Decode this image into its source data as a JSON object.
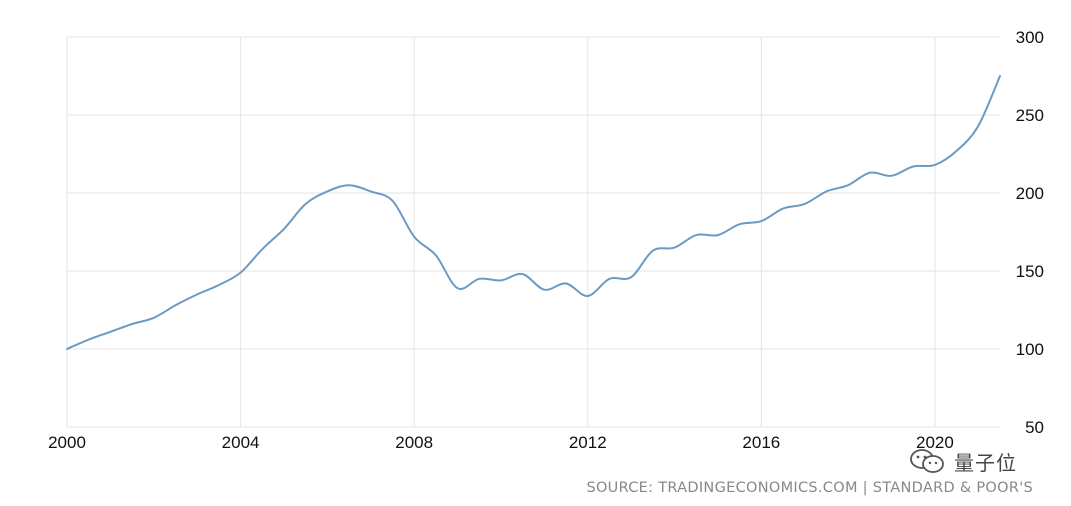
{
  "chart_data": {
    "type": "line",
    "title": "",
    "xlabel": "",
    "ylabel": "",
    "xlim": [
      2000,
      2021.5
    ],
    "ylim": [
      50,
      300
    ],
    "x_ticks": [
      "2000",
      "2004",
      "2008",
      "2012",
      "2016",
      "2020"
    ],
    "y_ticks": [
      "50",
      "100",
      "150",
      "200",
      "250",
      "300"
    ],
    "y_axis_side": "right",
    "grid": true,
    "legend": "none",
    "series_color": "#6b9ac4",
    "series": [
      {
        "x": [
          2000.0,
          2000.5,
          2001.0,
          2001.5,
          2002.0,
          2002.5,
          2003.0,
          2003.5,
          2004.0,
          2004.5,
          2005.0,
          2005.5,
          2006.0,
          2006.5,
          2007.0,
          2007.5,
          2008.0,
          2008.5,
          2009.0,
          2009.5,
          2010.0,
          2010.5,
          2011.0,
          2011.5,
          2012.0,
          2012.5,
          2013.0,
          2013.5,
          2014.0,
          2014.5,
          2015.0,
          2015.5,
          2016.0,
          2016.5,
          2017.0,
          2017.5,
          2018.0,
          2018.5,
          2019.0,
          2019.5,
          2020.0,
          2020.5,
          2021.0,
          2021.5
        ],
        "values": [
          100,
          106,
          111,
          116,
          120,
          128,
          135,
          141,
          149,
          164,
          177,
          193,
          201,
          205,
          201,
          195,
          172,
          160,
          139,
          145,
          144,
          148,
          138,
          142,
          134,
          145,
          146,
          163,
          165,
          173,
          173,
          180,
          182,
          190,
          193,
          201,
          205,
          213,
          211,
          217,
          218,
          227,
          243,
          275
        ]
      }
    ]
  },
  "watermark": {
    "text": "量子位"
  },
  "source": "SOURCE: TRADINGECONOMICS.COM | STANDARD & POOR'S"
}
